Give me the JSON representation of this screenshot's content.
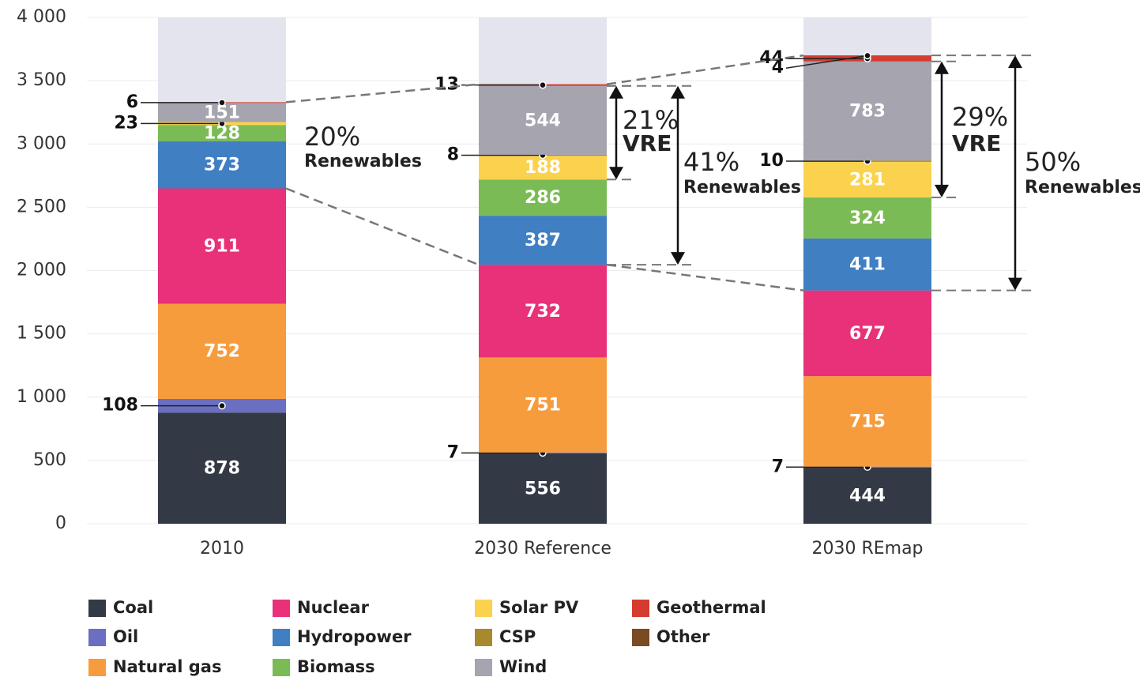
{
  "chart_data": {
    "type": "stacked_bar",
    "categories": [
      "2010",
      "2030 Reference",
      "2030 REmap"
    ],
    "series": [
      {
        "name": "Coal",
        "color": "#343a45",
        "values": [
          878,
          556,
          444
        ]
      },
      {
        "name": "Oil",
        "color": "#6a6fc1",
        "values": [
          108,
          7,
          7
        ]
      },
      {
        "name": "Natural gas",
        "color": "#f79c3d",
        "values": [
          752,
          751,
          715
        ]
      },
      {
        "name": "Nuclear",
        "color": "#e83178",
        "values": [
          911,
          732,
          677
        ]
      },
      {
        "name": "Hydropower",
        "color": "#3f7fc2",
        "values": [
          373,
          387,
          411
        ]
      },
      {
        "name": "Biomass",
        "color": "#7bbb55",
        "values": [
          128,
          286,
          324
        ]
      },
      {
        "name": "Solar PV",
        "color": "#fbd24e",
        "values": [
          23,
          188,
          281
        ]
      },
      {
        "name": "CSP",
        "color": "#a8892e",
        "values": [
          null,
          8,
          10
        ]
      },
      {
        "name": "Wind",
        "color": "#a6a4ae",
        "values": [
          151,
          544,
          783
        ]
      },
      {
        "name": "Geothermal",
        "color": "#d33c2e",
        "values": [
          6,
          13,
          44
        ]
      },
      {
        "name": "Other",
        "color": "#7a4a22",
        "values": [
          null,
          null,
          4
        ]
      }
    ],
    "ylim": [
      0,
      4000
    ],
    "yticks": [
      0,
      500,
      {
        "value": 1000,
        "label": "1 000"
      },
      {
        "value": 1500,
        "label": "1 500"
      },
      {
        "value": 2000,
        "label": "2 000"
      },
      {
        "value": 2500,
        "label": "2 500"
      },
      {
        "value": 3000,
        "label": "3 000"
      },
      {
        "value": 3500,
        "label": "3 500"
      },
      {
        "value": 4000,
        "label": "4 000"
      }
    ],
    "grid": true,
    "annotations": [
      {
        "value": "20%",
        "label": "Renewables"
      },
      {
        "value": "21%",
        "label": "VRE"
      },
      {
        "value": "41%",
        "label": "Renewables"
      },
      {
        "value": "29%",
        "label": "VRE"
      },
      {
        "value": "50%",
        "label": "Renewables"
      }
    ]
  }
}
